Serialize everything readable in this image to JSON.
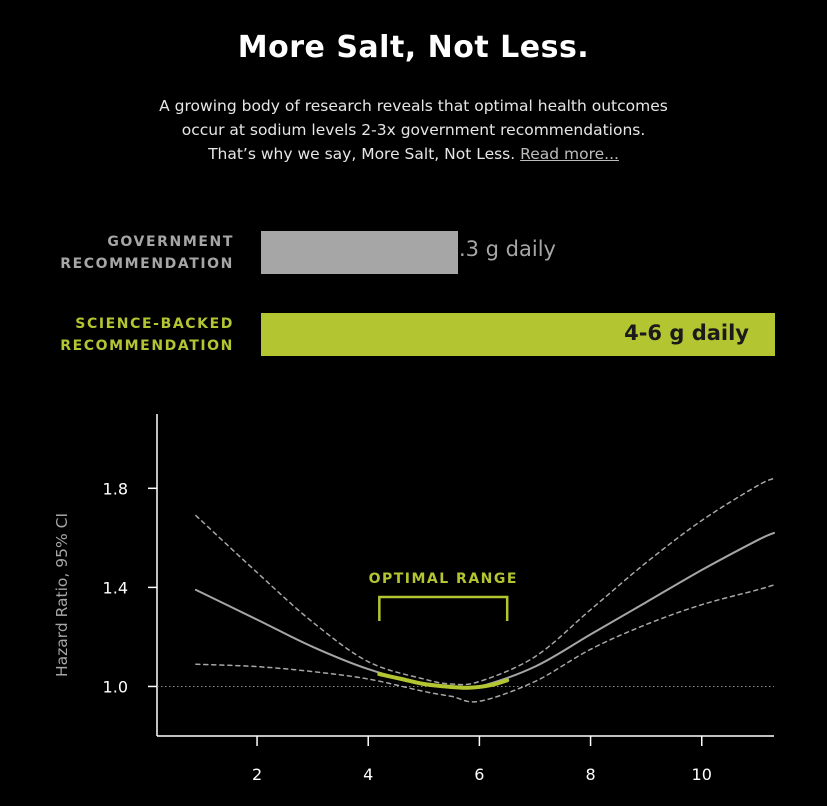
{
  "header": {
    "title": "More Salt, Not Less.",
    "subtitle_lines": [
      "A growing body of research reveals that optimal health outcomes",
      "occur at sodium levels 2-3x government recommendations.",
      "That’s why we say, More Salt, Not Less."
    ],
    "read_more": "Read more..."
  },
  "recommendations": [
    {
      "label_lines": [
        "GOVERNMENT",
        "RECOMMENDATION"
      ],
      "value_text": "<2.3 g daily",
      "value_g": 2.3,
      "color": "#a6a6a6"
    },
    {
      "label_lines": [
        "SCIENCE-BACKED",
        "RECOMMENDATION"
      ],
      "value_text": "4-6 g daily",
      "value_g": 6,
      "color": "#b4c532"
    }
  ],
  "chart_data": {
    "type": "line",
    "title": "",
    "xlabel": "",
    "ylabel": "Hazard Ratio, 95% CI",
    "xlim": [
      0.2,
      11.3
    ],
    "ylim": [
      0.8,
      2.1
    ],
    "xticks": [
      2,
      4,
      6,
      8,
      10
    ],
    "yticks": [
      1.0,
      1.4,
      1.8
    ],
    "reference_line": 1.0,
    "annotation": {
      "label": "OPTIMAL RANGE",
      "x_range": [
        4.2,
        6.5
      ],
      "color": "#b4c532"
    },
    "series": [
      {
        "style": "solid",
        "color": "#a6a6a6",
        "x": [
          0.9,
          2,
          3,
          4,
          5,
          5.5,
          6,
          7,
          8,
          9,
          10,
          11,
          11.3
        ],
        "y": [
          1.39,
          1.27,
          1.16,
          1.07,
          1.01,
          1.0,
          1.0,
          1.08,
          1.21,
          1.34,
          1.47,
          1.59,
          1.62
        ]
      },
      {
        "style": "solid",
        "color": "#b4c532",
        "x": [
          4.2,
          4.6,
          5.0,
          5.4,
          5.8,
          6.2,
          6.5
        ],
        "y": [
          1.05,
          1.03,
          1.01,
          1.0,
          0.995,
          1.005,
          1.025
        ]
      },
      {
        "style": "dashed",
        "color": "#a6a6a6",
        "x": [
          0.9,
          2,
          3,
          4,
          5,
          5.5,
          6,
          7,
          8,
          9,
          10,
          11,
          11.3
        ],
        "y": [
          1.69,
          1.46,
          1.26,
          1.1,
          1.03,
          1.01,
          1.02,
          1.12,
          1.31,
          1.5,
          1.67,
          1.81,
          1.84
        ]
      },
      {
        "style": "dashed",
        "color": "#a6a6a6",
        "x": [
          0.9,
          2,
          3,
          4,
          5,
          5.5,
          6,
          7,
          8,
          9,
          10,
          11,
          11.3
        ],
        "y": [
          1.09,
          1.08,
          1.06,
          1.03,
          0.98,
          0.96,
          0.94,
          1.02,
          1.15,
          1.25,
          1.33,
          1.39,
          1.41
        ]
      }
    ]
  }
}
